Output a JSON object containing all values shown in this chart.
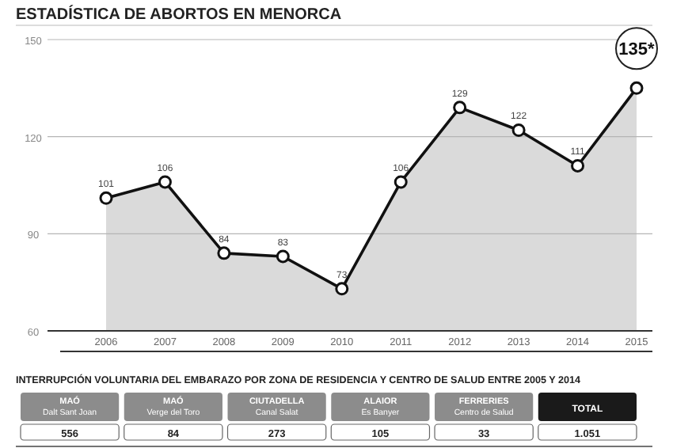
{
  "chart_data": [
    {
      "type": "area",
      "title": "ESTADÍSTICA DE ABORTOS EN MENORCA",
      "categories": [
        "2006",
        "2007",
        "2008",
        "2009",
        "2010",
        "2011",
        "2012",
        "2013",
        "2014",
        "2015"
      ],
      "values": [
        101,
        106,
        84,
        83,
        73,
        106,
        129,
        122,
        111,
        135
      ],
      "value_labels": [
        "101",
        "106",
        "84",
        "83",
        "73",
        "106",
        "129",
        "122",
        "111",
        "135*"
      ],
      "color": "#dadada",
      "ylim": [
        60,
        150
      ],
      "yticks": [
        60,
        90,
        120,
        150
      ],
      "grid": "y",
      "marker": "circle"
    },
    {
      "type": "other",
      "title": "INTERRUPCIÓN VOLUNTARIA DEL EMBARAZO POR ZONA DE RESIDENCIA Y CENTRO DE SALUD ENTRE 2005 Y 2014",
      "categories": [
        "MAÓ\nDalt Sant Joan",
        "MAÓ\nVerge del Toro",
        "CIUTADELLA\nCanal Salat",
        "ALAIOR\nEs Banyer",
        "FERRERIES\nCentro de Salud",
        "TOTAL"
      ],
      "annotations": [
        "556",
        "84",
        "273",
        "105",
        "33",
        "1.051"
      ]
    }
  ]
}
